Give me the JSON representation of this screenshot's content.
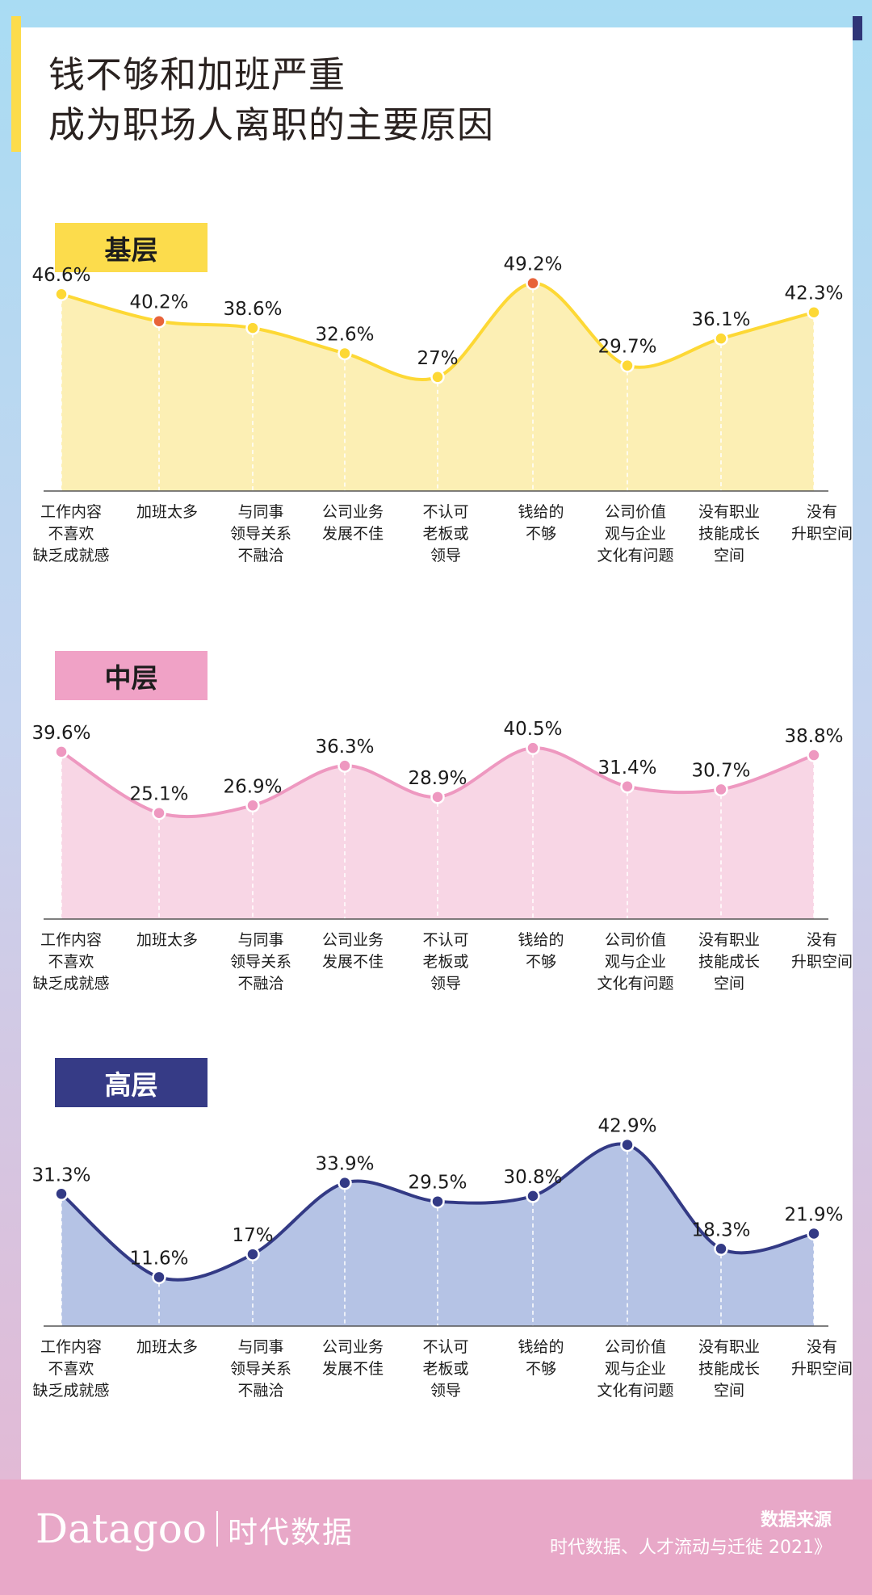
{
  "title": [
    "钱不够和加班严重",
    "成为职场人离职的主要原因"
  ],
  "colors": {
    "yellow_line": "#fdd835",
    "yellow_fill": "#fcefb4",
    "yellow_badge": "#fcdc4c",
    "yellow_highlight": "#e8633a",
    "pink_line": "#ee98c0",
    "pink_fill": "#f8d6e5",
    "pink_badge": "#f0a2c6",
    "navy_line": "#333a85",
    "navy_fill": "#b5c3e5",
    "navy_badge": "#363b86",
    "footer_pink": "#e8a8c8",
    "sky_blue": "#a9dcf3"
  },
  "categories": [
    "工作内容\n不喜欢\n缺乏成就感",
    "加班太多",
    "与同事\n领导关系\n不融洽",
    "公司业务\n发展不佳",
    "不认可\n老板或\n领导",
    "钱给的\n不够",
    "公司价值\n观与企业\n文化有问题",
    "没有职业\n技能成长\n空间",
    "没有\n升职空间"
  ],
  "chart_data": [
    {
      "type": "area",
      "title": "基层",
      "categories": [
        "工作内容不喜欢缺乏成就感",
        "加班太多",
        "与同事领导关系不融洽",
        "公司业务发展不佳",
        "不认可老板或领导",
        "钱给的不够",
        "公司价值观与企业文化有问题",
        "没有职业技能成长空间",
        "没有升职空间"
      ],
      "values": [
        46.6,
        40.2,
        38.6,
        32.6,
        27,
        49.2,
        29.7,
        36.1,
        42.3
      ],
      "labels": [
        "46.6%",
        "40.2%",
        "38.6%",
        "32.6%",
        "27%",
        "49.2%",
        "29.7%",
        "36.1%",
        "42.3%"
      ],
      "highlight_indices": [
        1,
        5
      ]
    },
    {
      "type": "area",
      "title": "中层",
      "categories": [
        "工作内容不喜欢缺乏成就感",
        "加班太多",
        "与同事领导关系不融洽",
        "公司业务发展不佳",
        "不认可老板或领导",
        "钱给的不够",
        "公司价值观与企业文化有问题",
        "没有职业技能成长空间",
        "没有升职空间"
      ],
      "values": [
        39.6,
        25.1,
        26.9,
        36.3,
        28.9,
        40.5,
        31.4,
        30.7,
        38.8
      ],
      "labels": [
        "39.6%",
        "25.1%",
        "26.9%",
        "36.3%",
        "28.9%",
        "40.5%",
        "31.4%",
        "30.7%",
        "38.8%"
      ]
    },
    {
      "type": "area",
      "title": "高层",
      "categories": [
        "工作内容不喜欢缺乏成就感",
        "加班太多",
        "与同事领导关系不融洽",
        "公司业务发展不佳",
        "不认可老板或领导",
        "钱给的不够",
        "公司价值观与企业文化有问题",
        "没有职业技能成长空间",
        "没有升职空间"
      ],
      "values": [
        31.3,
        11.6,
        17,
        33.9,
        29.5,
        30.8,
        42.9,
        18.3,
        21.9
      ],
      "labels": [
        "31.3%",
        "11.6%",
        "17%",
        "33.9%",
        "29.5%",
        "30.8%",
        "42.9%",
        "18.3%",
        "21.9%"
      ]
    }
  ],
  "footer": {
    "logo_word": "Datagoo",
    "logo_cn": "时代数据",
    "source_label": "数据来源",
    "source_text": "时代数据、人才流动与迁徙 2021》"
  }
}
